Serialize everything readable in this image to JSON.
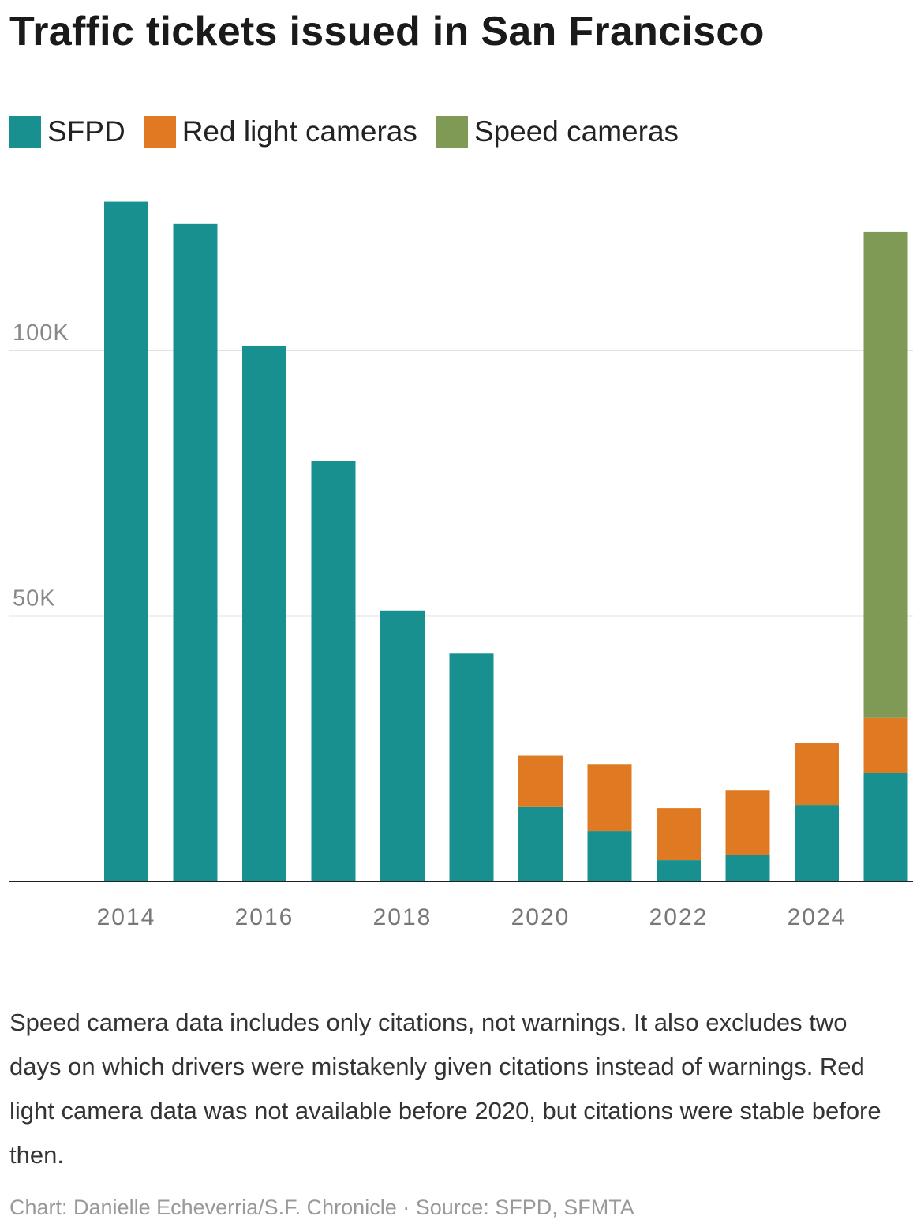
{
  "chart_data": {
    "type": "bar",
    "stacked": true,
    "title": "Traffic tickets issued in San Francisco",
    "xlabel": "",
    "ylabel": "",
    "ylim": [
      0,
      130000
    ],
    "yticks": [
      {
        "value": 50000,
        "label": "50K"
      },
      {
        "value": 100000,
        "label": "100K"
      }
    ],
    "grid": true,
    "legend_placement": "top-left",
    "categories": [
      "2014",
      "2015",
      "2016",
      "2017",
      "2018",
      "2019",
      "2020",
      "2021",
      "2022",
      "2023",
      "2024",
      "2025"
    ],
    "xtick_labels": [
      "2014",
      "2016",
      "2018",
      "2020",
      "2022",
      "2024"
    ],
    "series": [
      {
        "name": "SFPD",
        "color": "#18908f",
        "values": [
          128000,
          123800,
          100900,
          79200,
          51000,
          42900,
          14000,
          9500,
          4000,
          5000,
          14400,
          20400
        ]
      },
      {
        "name": "Red light cameras",
        "color": "#e07a22",
        "values": [
          null,
          null,
          null,
          null,
          null,
          null,
          9700,
          12600,
          9800,
          12200,
          11600,
          10400
        ]
      },
      {
        "name": "Speed cameras",
        "color": "#7f9a55",
        "values": [
          null,
          null,
          null,
          null,
          null,
          null,
          null,
          null,
          null,
          null,
          null,
          91500
        ]
      }
    ]
  },
  "notes": "Speed camera data includes only citations, not warnings. It also excludes two days on which drivers were mistakenly given citations instead of warnings. Red light camera data was not available before 2020, but citations were stable before then.",
  "credit": "Chart: Danielle Echeverria/S.F. Chronicle · Source: SFPD, SFMTA"
}
